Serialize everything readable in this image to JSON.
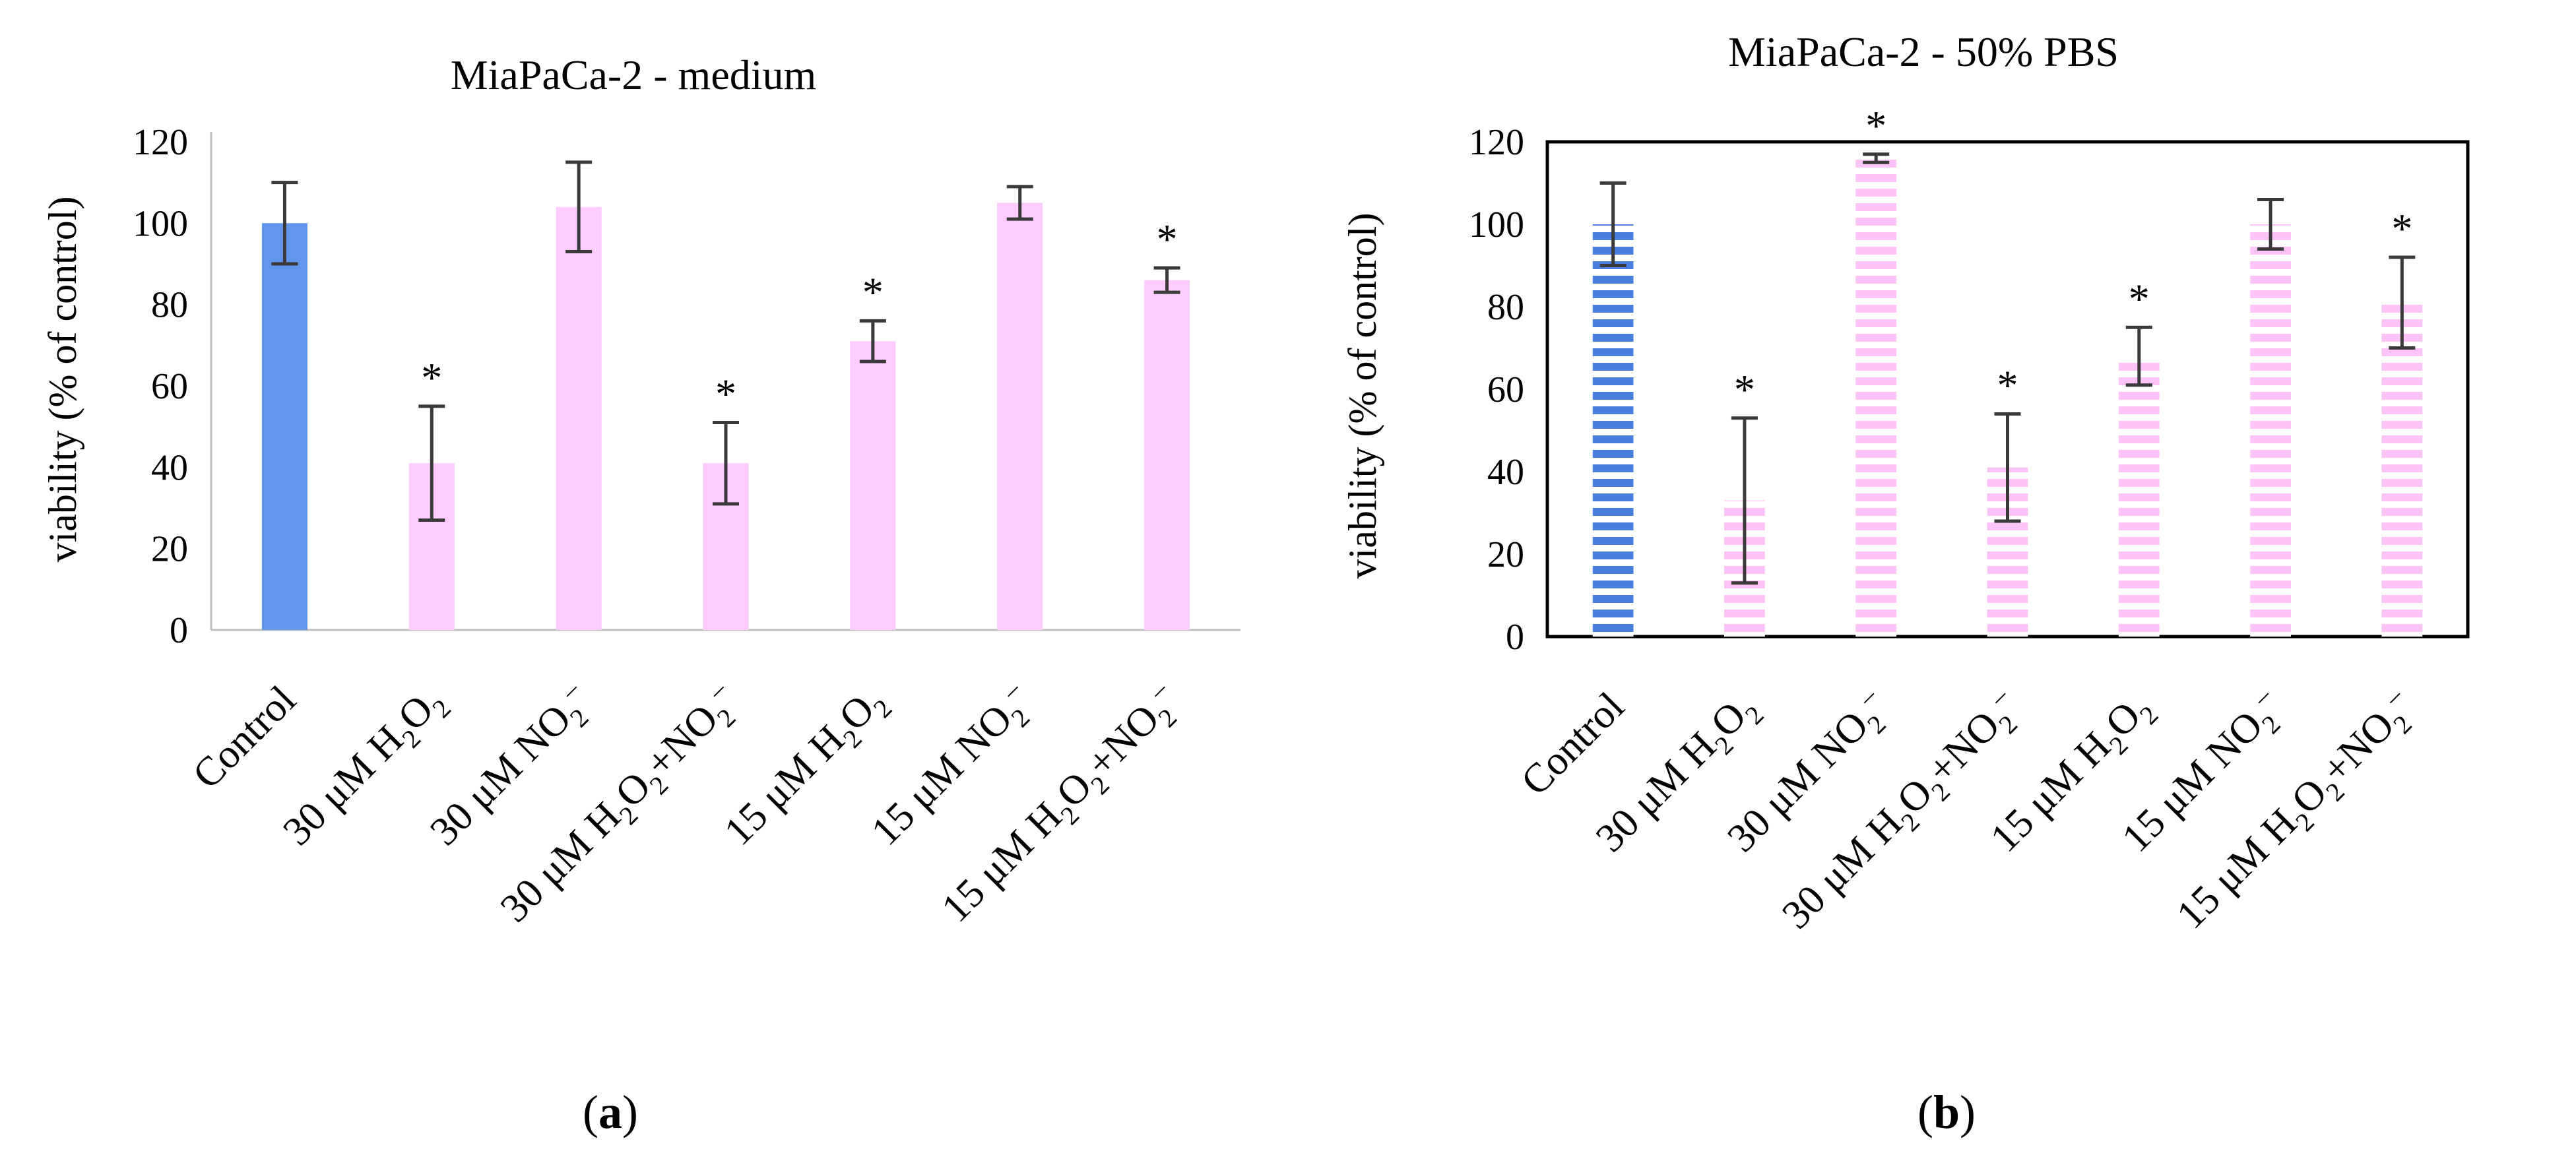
{
  "chart_data": [
    {
      "type": "bar",
      "panel_label": "a",
      "title": "MiaPaCa-2 - medium",
      "xlabel": "",
      "ylabel": "viability (% of control)",
      "ylim": [
        0,
        120
      ],
      "yticks": [
        0,
        20,
        40,
        60,
        80,
        100,
        120
      ],
      "grid": false,
      "fill_style": "solid",
      "colors": {
        "control": "#6495ed",
        "treatment": "#ffccff"
      },
      "categories": [
        {
          "pre": "Control",
          "parts": []
        },
        {
          "pre": "30 μM H",
          "parts": [
            [
              "sub",
              "2"
            ],
            [
              "t",
              "O"
            ],
            [
              "sub",
              "2"
            ]
          ]
        },
        {
          "pre": "30 μM NO",
          "parts": [
            [
              "sub",
              "2"
            ],
            [
              "sup",
              "–"
            ]
          ]
        },
        {
          "pre": "30 μM H",
          "parts": [
            [
              "sub",
              "2"
            ],
            [
              "t",
              "O"
            ],
            [
              "sub",
              "2"
            ],
            [
              "t",
              "+NO"
            ],
            [
              "sub",
              "2"
            ],
            [
              "sup",
              "–"
            ]
          ]
        },
        {
          "pre": "15 μM H",
          "parts": [
            [
              "sub",
              "2"
            ],
            [
              "t",
              "O"
            ],
            [
              "sub",
              "2"
            ]
          ]
        },
        {
          "pre": "15 μM NO",
          "parts": [
            [
              "sub",
              "2"
            ],
            [
              "sup",
              "–"
            ]
          ]
        },
        {
          "pre": "15 μM H",
          "parts": [
            [
              "sub",
              "2"
            ],
            [
              "t",
              "O"
            ],
            [
              "sub",
              "2"
            ],
            [
              "t",
              "+NO"
            ],
            [
              "sub",
              "2"
            ],
            [
              "sup",
              "–"
            ]
          ]
        }
      ],
      "values": [
        100,
        41,
        104,
        41,
        71,
        105,
        86
      ],
      "error": [
        10,
        14,
        11,
        10,
        5,
        4,
        3
      ],
      "significance": [
        "",
        "*",
        "",
        "*",
        "*",
        "",
        "*"
      ]
    },
    {
      "type": "bar",
      "panel_label": "b",
      "title": "MiaPaCa-2 - 50% PBS",
      "xlabel": "",
      "ylabel": "viability (% of control)",
      "ylim": [
        0,
        120
      ],
      "yticks": [
        0,
        20,
        40,
        60,
        80,
        100,
        120
      ],
      "grid": false,
      "fill_style": "horizontal-stripes",
      "colors": {
        "control": "#4a7fe0",
        "treatment": "#ffccff"
      },
      "categories": [
        {
          "pre": "Control",
          "parts": []
        },
        {
          "pre": "30 μM H",
          "parts": [
            [
              "sub",
              "2"
            ],
            [
              "t",
              "O"
            ],
            [
              "sub",
              "2"
            ]
          ]
        },
        {
          "pre": "30 μM NO",
          "parts": [
            [
              "sub",
              "2"
            ],
            [
              "sup",
              "–"
            ]
          ]
        },
        {
          "pre": "30 μM H",
          "parts": [
            [
              "sub",
              "2"
            ],
            [
              "t",
              "O"
            ],
            [
              "sub",
              "2"
            ],
            [
              "t",
              "+NO"
            ],
            [
              "sub",
              "2"
            ],
            [
              "sup",
              "–"
            ]
          ]
        },
        {
          "pre": "15 μM H",
          "parts": [
            [
              "sub",
              "2"
            ],
            [
              "t",
              "O"
            ],
            [
              "sub",
              "2"
            ]
          ]
        },
        {
          "pre": "15 μM NO",
          "parts": [
            [
              "sub",
              "2"
            ],
            [
              "sup",
              "–"
            ]
          ]
        },
        {
          "pre": "15 μM H",
          "parts": [
            [
              "sub",
              "2"
            ],
            [
              "t",
              "O"
            ],
            [
              "sub",
              "2"
            ],
            [
              "t",
              "+NO"
            ],
            [
              "sub",
              "2"
            ],
            [
              "sup",
              "–"
            ]
          ]
        }
      ],
      "values": [
        100,
        33,
        116,
        41,
        68,
        100,
        81
      ],
      "error": [
        10,
        20,
        1,
        13,
        7,
        6,
        11
      ],
      "significance": [
        "",
        "*",
        "*",
        "*",
        "*",
        "",
        "*"
      ]
    }
  ]
}
